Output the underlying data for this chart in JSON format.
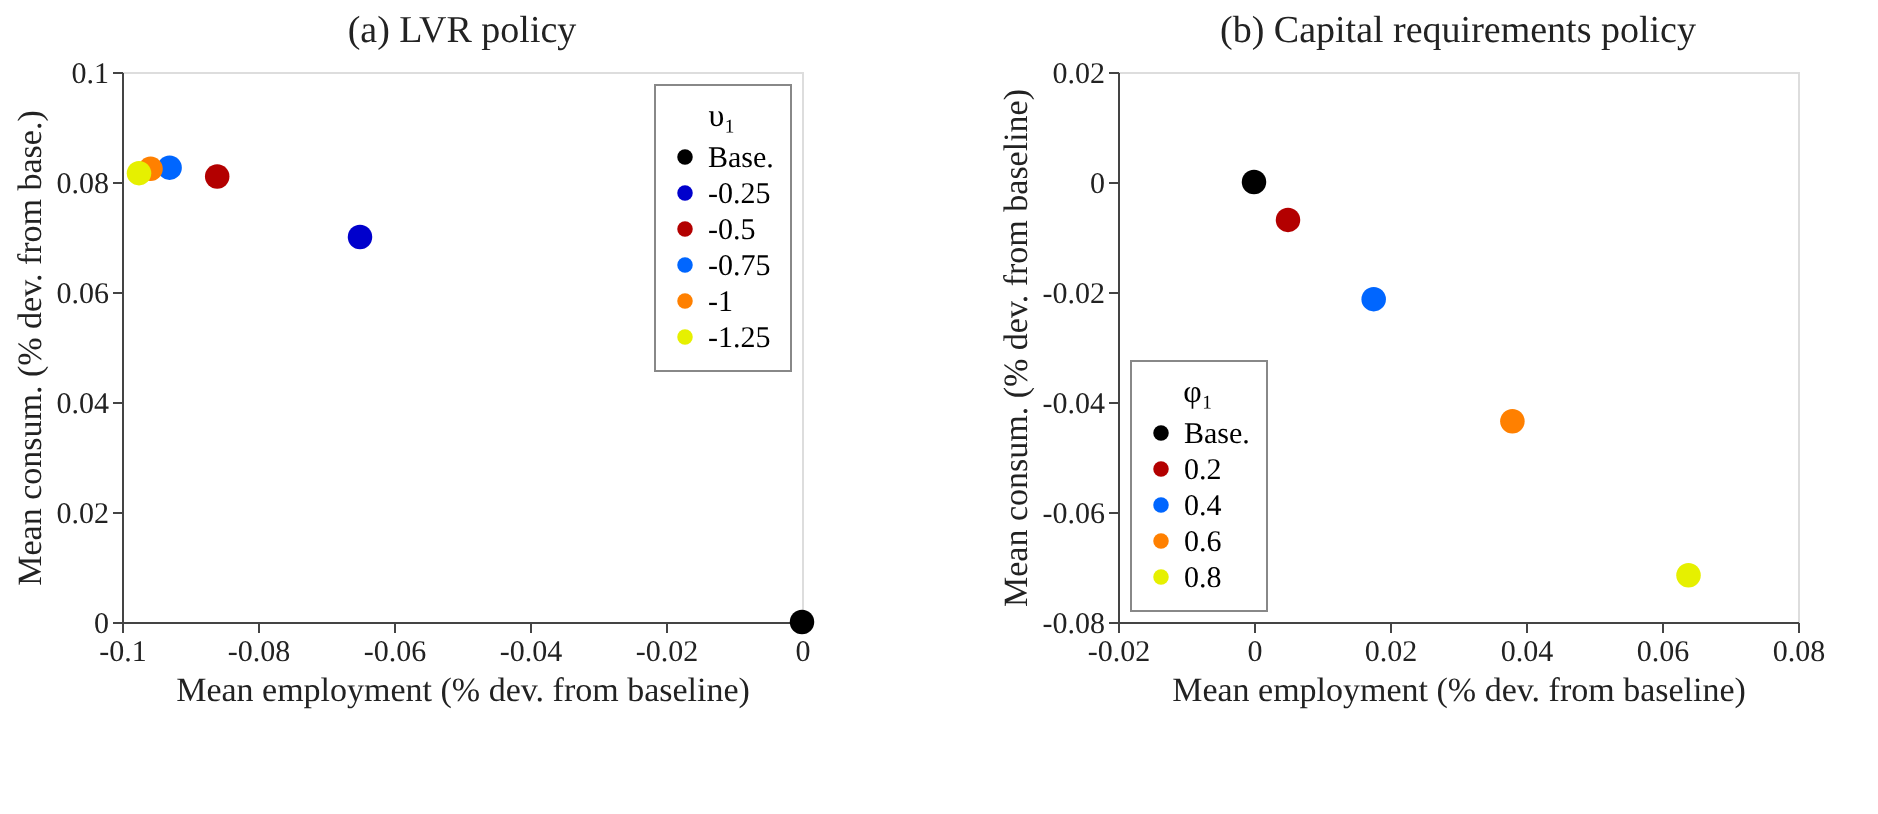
{
  "chart_data": [
    {
      "type": "scatter",
      "title": "(a) LVR policy",
      "xlabel": "Mean employment (% dev. from baseline)",
      "ylabel": "Mean consum. (% dev. from base.)",
      "legend_title": "υ₁",
      "legend": "top right",
      "marker": "circle",
      "grid": false,
      "xlim": [
        -0.1,
        0
      ],
      "xticks": [
        -0.1,
        -0.08,
        -0.06,
        -0.04,
        -0.02,
        0
      ],
      "ylim": [
        0,
        0.1
      ],
      "yticks": [
        0,
        0.02,
        0.04,
        0.06,
        0.08,
        0.1
      ],
      "series": [
        {
          "name": "Base.",
          "color": "#000000",
          "x": [
            0
          ],
          "values": [
            0
          ]
        },
        {
          "name": "-0.25",
          "color": "#0000cc",
          "x": [
            -0.065
          ],
          "values": [
            0.07
          ]
        },
        {
          "name": "-0.5",
          "color": "#b30000",
          "x": [
            -0.086
          ],
          "values": [
            0.081
          ]
        },
        {
          "name": "-0.75",
          "color": "#0066ff",
          "x": [
            -0.093
          ],
          "values": [
            0.0826
          ]
        },
        {
          "name": "-1",
          "color": "#ff8000",
          "x": [
            -0.0958
          ],
          "values": [
            0.0824
          ]
        },
        {
          "name": "-1.25",
          "color": "#e6f000",
          "x": [
            -0.0975
          ],
          "values": [
            0.0816
          ]
        }
      ]
    },
    {
      "type": "scatter",
      "title": "(b) Capital requirements policy",
      "xlabel": "Mean employment (% dev. from baseline)",
      "ylabel": "Mean consum. (% dev. from baseline)",
      "legend_title": "φ₁",
      "legend": "bottom left",
      "marker": "circle",
      "grid": false,
      "xlim": [
        -0.02,
        0.08
      ],
      "xticks": [
        -0.02,
        0,
        0.02,
        0.04,
        0.06,
        0.08
      ],
      "ylim": [
        -0.08,
        0.02
      ],
      "yticks": [
        -0.08,
        -0.06,
        -0.04,
        -0.02,
        0,
        0.02
      ],
      "series": [
        {
          "name": "Base.",
          "color": "#000000",
          "x": [
            0
          ],
          "values": [
            0
          ]
        },
        {
          "name": "0.2",
          "color": "#b30000",
          "x": [
            0.005
          ],
          "values": [
            -0.0069
          ]
        },
        {
          "name": "0.4",
          "color": "#0066ff",
          "x": [
            0.0176
          ],
          "values": [
            -0.0213
          ]
        },
        {
          "name": "0.6",
          "color": "#ff8000",
          "x": [
            0.038
          ],
          "values": [
            -0.0435
          ]
        },
        {
          "name": "0.8",
          "color": "#e6f000",
          "x": [
            0.0639
          ],
          "values": [
            -0.0715
          ]
        }
      ]
    }
  ]
}
